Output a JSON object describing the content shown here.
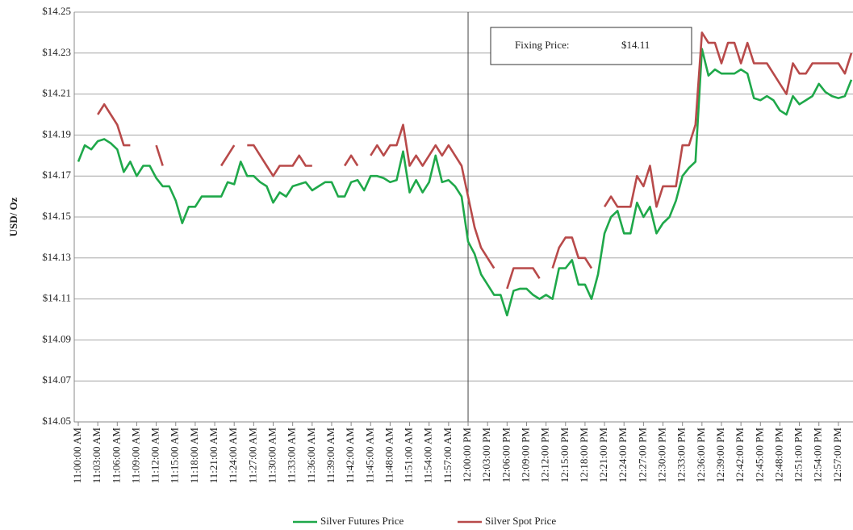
{
  "chart_data": {
    "type": "line",
    "y_label": "USD/ Oz",
    "annotation": {
      "label": "Fixing Price:",
      "value_text": "$14.11"
    },
    "legend": "bottom",
    "grid": true,
    "ylim": [
      14.05,
      14.25
    ],
    "yticks": [
      {
        "value": 14.05,
        "label": "$14.05"
      },
      {
        "value": 14.07,
        "label": "$14.07"
      },
      {
        "value": 14.09,
        "label": "$14.09"
      },
      {
        "value": 14.11,
        "label": "$14.11"
      },
      {
        "value": 14.13,
        "label": "$14.13"
      },
      {
        "value": 14.15,
        "label": "$14.15"
      },
      {
        "value": 14.17,
        "label": "$14.17"
      },
      {
        "value": 14.19,
        "label": "$14.19"
      },
      {
        "value": 14.21,
        "label": "$14.21"
      },
      {
        "value": 14.23,
        "label": "$14.23"
      },
      {
        "value": 14.25,
        "label": "$14.25"
      }
    ],
    "categories": [
      "11:00:00 AM",
      null,
      null,
      "11:03:00 AM",
      null,
      null,
      "11:06:00 AM",
      null,
      null,
      "11:09:00 AM",
      null,
      null,
      "11:12:00 AM",
      null,
      null,
      "11:15:00 AM",
      null,
      null,
      "11:18:00 AM",
      null,
      null,
      "11:21:00 AM",
      null,
      null,
      "11:24:00 AM",
      null,
      null,
      "11:27:00 AM",
      null,
      null,
      "11:30:00 AM",
      null,
      null,
      "11:33:00 AM",
      null,
      null,
      "11:36:00 AM",
      null,
      null,
      "11:39:00 AM",
      null,
      null,
      "11:42:00 AM",
      null,
      null,
      "11:45:00 AM",
      null,
      null,
      "11:48:00 AM",
      null,
      null,
      "11:51:00 AM",
      null,
      null,
      "11:54:00 AM",
      null,
      null,
      "11:57:00 AM",
      null,
      null,
      "12:00:00 PM",
      null,
      null,
      "12:03:00 PM",
      null,
      null,
      "12:06:00 PM",
      null,
      null,
      "12:09:00 PM",
      null,
      null,
      "12:12:00 PM",
      null,
      null,
      "12:15:00 PM",
      null,
      null,
      "12:18:00 PM",
      null,
      null,
      "12:21:00 PM",
      null,
      null,
      "12:24:00 PM",
      null,
      null,
      "12:27:00 PM",
      null,
      null,
      "12:30:00 PM",
      null,
      null,
      "12:33:00 PM",
      null,
      null,
      "12:36:00 PM",
      null,
      null,
      "12:39:00 PM",
      null,
      null,
      "12:42:00 PM",
      null,
      null,
      "12:45:00 PM",
      null,
      null,
      "12:48:00 PM",
      null,
      null,
      "12:51:00 PM",
      null,
      null,
      "12:54:00 PM",
      null,
      null,
      "12:57:00 PM",
      null,
      null
    ],
    "series": [
      {
        "name": "Silver Futures Price",
        "color": "#1fa84a",
        "values": [
          14.177,
          14.185,
          14.183,
          14.187,
          14.188,
          14.186,
          14.183,
          14.172,
          14.177,
          14.17,
          14.175,
          14.175,
          14.169,
          14.165,
          14.165,
          14.158,
          14.147,
          14.155,
          14.155,
          14.16,
          14.16,
          14.16,
          14.16,
          14.167,
          14.166,
          14.177,
          14.17,
          14.17,
          14.167,
          14.165,
          14.157,
          14.162,
          14.16,
          14.165,
          14.166,
          14.167,
          14.163,
          14.165,
          14.167,
          14.167,
          14.16,
          14.16,
          14.167,
          14.168,
          14.163,
          14.17,
          14.17,
          14.169,
          14.167,
          14.168,
          14.182,
          14.162,
          14.168,
          14.162,
          14.167,
          14.18,
          14.167,
          14.168,
          14.165,
          14.16,
          14.138,
          14.132,
          14.122,
          14.117,
          14.112,
          14.112,
          14.102,
          14.114,
          14.115,
          14.115,
          14.112,
          14.11,
          14.112,
          14.11,
          14.125,
          14.125,
          14.129,
          14.117,
          14.117,
          14.11,
          14.122,
          14.142,
          14.15,
          14.153,
          14.142,
          14.142,
          14.157,
          14.15,
          14.155,
          14.142,
          14.147,
          14.15,
          14.158,
          14.17,
          14.174,
          14.177,
          14.232,
          14.219,
          14.222,
          14.22,
          14.22,
          14.22,
          14.222,
          14.22,
          14.208,
          14.207,
          14.209,
          14.207,
          14.202,
          14.2,
          14.209,
          14.205,
          14.207,
          14.209,
          14.215,
          14.211,
          14.209,
          14.208,
          14.209,
          14.217
        ]
      },
      {
        "name": "Silver Spot Price",
        "color": "#b84a4a",
        "values": [
          null,
          null,
          null,
          14.2,
          14.205,
          14.2,
          14.195,
          14.185,
          14.185,
          null,
          null,
          null,
          14.185,
          14.175,
          null,
          null,
          null,
          null,
          null,
          null,
          null,
          null,
          14.175,
          14.18,
          14.185,
          null,
          14.185,
          14.185,
          14.18,
          14.175,
          14.17,
          14.175,
          14.175,
          14.175,
          14.18,
          14.175,
          14.175,
          null,
          null,
          null,
          null,
          14.175,
          14.18,
          14.175,
          null,
          14.18,
          14.185,
          14.18,
          14.185,
          14.185,
          14.195,
          14.175,
          14.18,
          14.175,
          14.18,
          14.185,
          14.18,
          14.185,
          14.18,
          14.175,
          14.16,
          14.145,
          14.135,
          14.13,
          14.125,
          null,
          14.115,
          14.125,
          14.125,
          14.125,
          14.125,
          14.12,
          null,
          14.125,
          14.135,
          14.14,
          14.14,
          14.13,
          14.13,
          14.125,
          null,
          14.155,
          14.16,
          14.155,
          14.155,
          14.155,
          14.17,
          14.165,
          14.175,
          14.155,
          14.165,
          14.165,
          14.165,
          14.185,
          14.185,
          14.195,
          14.24,
          14.235,
          14.235,
          14.225,
          14.235,
          14.235,
          14.225,
          14.235,
          14.225,
          14.225,
          14.225,
          14.22,
          14.215,
          14.21,
          14.225,
          14.22,
          14.22,
          14.225,
          14.225,
          14.225,
          14.225,
          14.225,
          14.22,
          14.23
        ]
      }
    ]
  }
}
